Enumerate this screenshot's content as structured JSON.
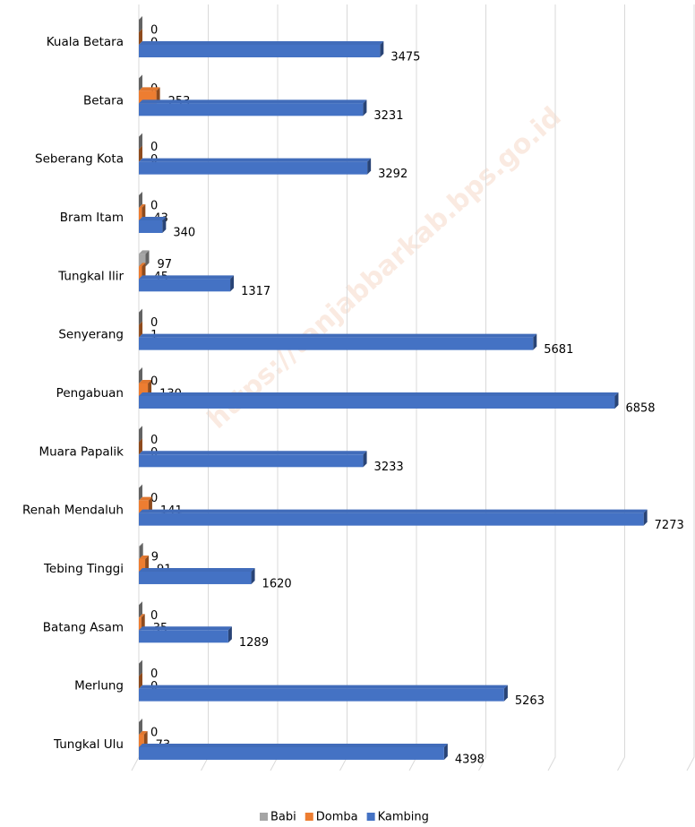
{
  "chart_data": {
    "type": "bar3d",
    "watermark": "https://tanjabbarkab.bps.go.id",
    "categories": [
      "Kuala Betara",
      "Betara",
      "Seberang Kota",
      "Bram Itam",
      "Tungkal Ilir",
      "Senyerang",
      "Pengabuan",
      "Muara Papalik",
      "Renah Mendaluh",
      "Tebing Tinggi",
      "Batang Asam",
      "Merlung",
      "Tungkal Ulu"
    ],
    "series": [
      {
        "name": "Babi",
        "color": "#a5a5a5",
        "values": [
          0,
          0,
          0,
          0,
          97,
          0,
          0,
          0,
          0,
          9,
          0,
          0,
          0
        ]
      },
      {
        "name": "Domba",
        "color": "#ed7d31",
        "values": [
          0,
          253,
          0,
          43,
          45,
          1,
          130,
          0,
          141,
          91,
          35,
          0,
          73
        ]
      },
      {
        "name": "Kambing",
        "color": "#4472c4",
        "values": [
          3475,
          3231,
          3292,
          340,
          1317,
          5681,
          6858,
          3233,
          7273,
          1620,
          1289,
          5263,
          4398
        ]
      }
    ],
    "xlim": [
      0,
      8000
    ],
    "xticks": [
      0,
      1000,
      2000,
      3000,
      4000,
      5000,
      6000,
      7000,
      8000
    ],
    "grid": true,
    "legend": "bottom"
  }
}
